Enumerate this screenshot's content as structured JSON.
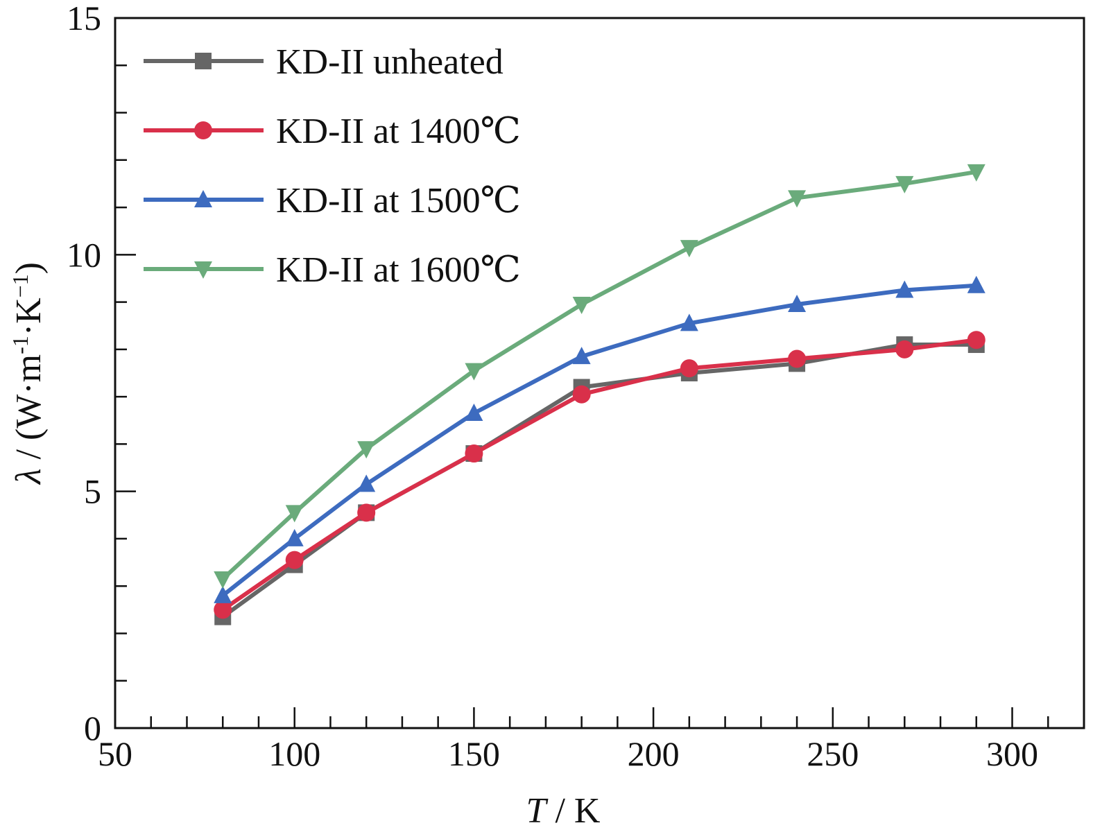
{
  "chart_data": {
    "type": "line",
    "xlabel_italic": "T",
    "xlabel_rest": " / K",
    "ylabel_sym": "λ",
    "ylabel_rest": " / (W·m",
    "ylabel_exp1": "-1",
    "ylabel_mid": "·K",
    "ylabel_exp2": "−1",
    "ylabel_end": ")",
    "xlim": [
      50,
      320
    ],
    "ylim": [
      0,
      15
    ],
    "xticks": [
      50,
      100,
      150,
      200,
      250,
      300
    ],
    "yticks": [
      0,
      5,
      10,
      15
    ],
    "x_minor_step": 10,
    "y_minor_step": 1,
    "grid": false,
    "legend_position": "top-left",
    "series": [
      {
        "name": "KD-II unheated",
        "color": "#666666",
        "marker": "square",
        "x": [
          80,
          100,
          120,
          150,
          180,
          210,
          240,
          270,
          290
        ],
        "y": [
          2.35,
          3.45,
          4.55,
          5.8,
          7.2,
          7.5,
          7.7,
          8.1,
          8.1
        ]
      },
      {
        "name": "KD-II at 1400℃",
        "color": "#d9304a",
        "marker": "circle",
        "x": [
          80,
          100,
          120,
          150,
          180,
          210,
          240,
          270,
          290
        ],
        "y": [
          2.5,
          3.55,
          4.55,
          5.8,
          7.05,
          7.6,
          7.8,
          8.0,
          8.2
        ]
      },
      {
        "name": "KD-II at 1500℃",
        "color": "#3d6bbf",
        "marker": "triangle-up",
        "x": [
          80,
          100,
          120,
          150,
          180,
          210,
          240,
          270,
          290
        ],
        "y": [
          2.8,
          4.0,
          5.15,
          6.65,
          7.85,
          8.55,
          8.95,
          9.25,
          9.35
        ]
      },
      {
        "name": "KD-II at 1600℃",
        "color": "#6aab7b",
        "marker": "triangle-down",
        "x": [
          80,
          100,
          120,
          150,
          180,
          210,
          240,
          270,
          290
        ],
        "y": [
          3.15,
          4.55,
          5.9,
          7.55,
          8.95,
          10.15,
          11.2,
          11.5,
          11.75
        ]
      }
    ]
  }
}
